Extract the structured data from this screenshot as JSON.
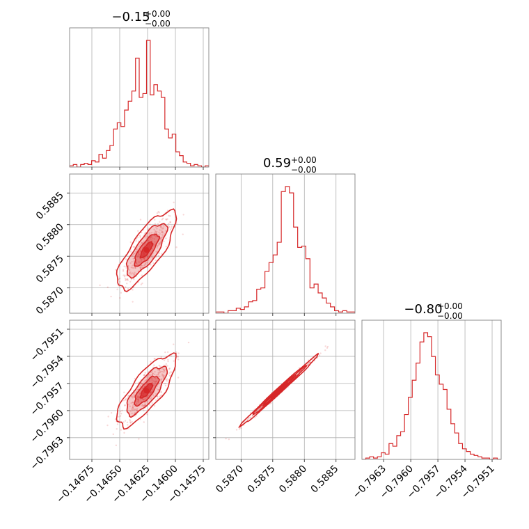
{
  "chart_data": {
    "type": "corner",
    "color": "#d62728",
    "grid": true,
    "parameters": [
      {
        "title": {
          "center": "−0.15",
          "plus": "+0.00",
          "minus": "−0.00"
        },
        "range": [
          -0.14695,
          -0.1457
        ],
        "ticks": [
          {
            "value": -0.14675,
            "label": "−0.14675"
          },
          {
            "value": -0.1465,
            "label": "−0.14650"
          },
          {
            "value": -0.14625,
            "label": "−0.14625"
          },
          {
            "value": -0.146,
            "label": "−0.14600"
          },
          {
            "value": -0.14575,
            "label": "−0.14575"
          }
        ],
        "hist": [
          0.01,
          0.02,
          0.0,
          0.02,
          0.03,
          0.02,
          0.05,
          0.04,
          0.1,
          0.07,
          0.13,
          0.17,
          0.3,
          0.35,
          0.32,
          0.45,
          0.52,
          0.6,
          0.86,
          0.55,
          0.58,
          1.0,
          0.57,
          0.65,
          0.6,
          0.55,
          0.3,
          0.23,
          0.26,
          0.12,
          0.09,
          0.04,
          0.03,
          0.01,
          0.02,
          0.01,
          0.0,
          0.01
        ]
      },
      {
        "title": {
          "center": "0.59",
          "plus": "+0.00",
          "minus": "−0.00"
        },
        "range": [
          0.5866,
          0.5888
        ],
        "ticks": [
          {
            "value": 0.587,
            "label": "0.5870"
          },
          {
            "value": 0.5875,
            "label": "0.5875"
          },
          {
            "value": 0.588,
            "label": "0.5880"
          },
          {
            "value": 0.5885,
            "label": "0.5885"
          }
        ],
        "hist": [
          0.01,
          0.01,
          0.0,
          0.02,
          0.02,
          0.04,
          0.03,
          0.05,
          0.09,
          0.1,
          0.19,
          0.2,
          0.33,
          0.4,
          0.46,
          0.56,
          0.96,
          1.0,
          0.95,
          0.68,
          0.52,
          0.53,
          0.43,
          0.2,
          0.23,
          0.16,
          0.12,
          0.08,
          0.05,
          0.02,
          0.01,
          0.02,
          0.01,
          0.01
        ]
      },
      {
        "title": {
          "center": "−0.80",
          "plus": "+0.00",
          "minus": "−0.00"
        },
        "range": [
          -0.79654,
          -0.795
        ],
        "ticks": [
          {
            "value": -0.7963,
            "label": "−0.7963"
          },
          {
            "value": -0.796,
            "label": "−0.7960"
          },
          {
            "value": -0.7957,
            "label": "−0.7957"
          },
          {
            "value": -0.7954,
            "label": "−0.7954"
          },
          {
            "value": -0.7951,
            "label": "−0.7951"
          }
        ],
        "hist": [
          0.0,
          0.01,
          0.02,
          0.01,
          0.02,
          0.05,
          0.04,
          0.12,
          0.1,
          0.18,
          0.21,
          0.34,
          0.47,
          0.6,
          0.73,
          0.89,
          0.96,
          0.93,
          0.78,
          0.64,
          0.57,
          0.53,
          0.38,
          0.27,
          0.2,
          0.12,
          0.08,
          0.06,
          0.04,
          0.03,
          0.02,
          0.01,
          0.01,
          0.0,
          0.01,
          0.0
        ]
      }
    ],
    "pair_stats": {
      "1,0": {
        "mean": [
          -0.14626,
          0.5876
        ],
        "sd": [
          0.00012,
          0.00028
        ],
        "rho": 0.78
      },
      "2,0": {
        "mean": [
          -0.14626,
          -0.79578
        ],
        "sd": [
          0.00012,
          0.00018
        ],
        "rho": 0.78
      },
      "2,1": {
        "mean": [
          0.5876,
          -0.79578
        ],
        "sd": [
          0.00028,
          0.00018
        ],
        "rho": 0.995
      }
    }
  }
}
